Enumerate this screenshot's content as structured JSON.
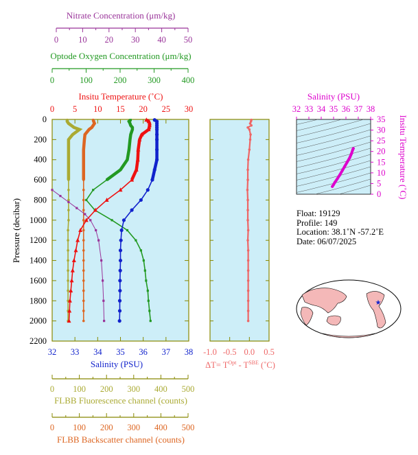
{
  "colors": {
    "nitrate": "#993399",
    "oxygen": "#229922",
    "temperature": "#ee1111",
    "salinity": "#1122cc",
    "fluorescence": "#aaaa33",
    "backscatter": "#dd6622",
    "delta": "#ee6666",
    "ts_accent": "#dd00cc",
    "plot_bg": "#cdeef8",
    "axis_olive": "#888800"
  },
  "axes": {
    "nitrate": {
      "title": "Nitrate Concentration (μm/kg)",
      "ticks": [
        "0",
        "10",
        "20",
        "30",
        "40",
        "50"
      ]
    },
    "oxygen": {
      "title": "Optode Oxygen Concentration (μm/kg)",
      "ticks": [
        "0",
        "100",
        "200",
        "300",
        "400"
      ]
    },
    "temperature": {
      "title": "Insitu Temperature (˚C)",
      "ticks": [
        "0",
        "5",
        "10",
        "15",
        "20",
        "25",
        "30"
      ]
    },
    "pressure": {
      "title": "Pressure (decibar)",
      "ticks": [
        "0",
        "200",
        "400",
        "600",
        "800",
        "1000",
        "1200",
        "1400",
        "1600",
        "1800",
        "2000",
        "2200"
      ]
    },
    "salinity": {
      "title": "Salinity (PSU)",
      "ticks": [
        "32",
        "33",
        "34",
        "35",
        "36",
        "37",
        "38"
      ]
    },
    "delta": {
      "title_main": "ΔT= T",
      "sup1": "Opt",
      "title_mid": " - T",
      "sup2": "SBE",
      "title_end": " (˚C)",
      "ticks": [
        "-1.0",
        "-0.5",
        "0.0",
        "0.5"
      ]
    },
    "fluorescence": {
      "title": "FLBB Fluorescence channel (counts)",
      "ticks": [
        "0",
        "100",
        "200",
        "300",
        "400",
        "500"
      ]
    },
    "backscatter": {
      "title": "FLBB Backscatter channel (counts)",
      "ticks": [
        "0",
        "100",
        "200",
        "300",
        "400",
        "500"
      ]
    },
    "ts_salinity": {
      "title": "Salinity (PSU)",
      "ticks": [
        "32",
        "33",
        "34",
        "35",
        "36",
        "37",
        "38"
      ]
    },
    "ts_temperature": {
      "title": "Insitu Temperature (˚C)",
      "ticks": [
        "0",
        "5",
        "10",
        "15",
        "20",
        "25",
        "30",
        "35"
      ]
    }
  },
  "info": {
    "float": "Float:  19129",
    "profile": "Profile:  149",
    "location": "Location:  38.1˚N  -57.2˚E",
    "date": "Date:  06/07/2025"
  },
  "chart_data": [
    {
      "type": "line",
      "name": "profile",
      "ylabel": "Pressure (decibar)",
      "ylim": [
        0,
        2200
      ],
      "temperature": {
        "xlim": [
          0,
          30
        ],
        "pressure": [
          5,
          20,
          40,
          60,
          80,
          100,
          150,
          200,
          300,
          400,
          500,
          600,
          700,
          800,
          900,
          1000,
          1100,
          1200,
          1300,
          1400,
          1500,
          1600,
          1700,
          1800,
          1900,
          2000
        ],
        "values": [
          20.7,
          21.2,
          21.4,
          21.4,
          21.3,
          21.2,
          19.7,
          19.2,
          18.9,
          18.8,
          18.5,
          17.5,
          15.0,
          12.0,
          9.5,
          7.5,
          6.2,
          5.6,
          5.2,
          4.8,
          4.5,
          4.3,
          4.1,
          3.9,
          3.8,
          3.7
        ]
      },
      "salinity": {
        "xlim": [
          32,
          38
        ],
        "pressure": [
          5,
          20,
          40,
          60,
          80,
          100,
          150,
          200,
          300,
          400,
          500,
          600,
          700,
          800,
          900,
          1000,
          1100,
          1200,
          1300,
          1400,
          1500,
          1600,
          1700,
          1800,
          1900,
          2000
        ],
        "values": [
          36.5,
          36.6,
          36.6,
          36.6,
          36.6,
          36.6,
          36.6,
          36.6,
          36.6,
          36.6,
          36.5,
          36.4,
          36.2,
          35.9,
          35.5,
          35.15,
          35.05,
          35.02,
          35.0,
          35.0,
          34.99,
          34.98,
          34.98,
          34.97,
          34.97,
          34.96
        ]
      },
      "oxygen": {
        "xlim": [
          0,
          400
        ],
        "pressure": [
          5,
          20,
          40,
          60,
          80,
          100,
          150,
          200,
          300,
          400,
          500,
          600,
          700,
          800,
          900,
          1000,
          1100,
          1200,
          1300,
          1400,
          1500,
          1600,
          1700,
          1800,
          1900,
          2000
        ],
        "values": [
          230,
          225,
          228,
          230,
          235,
          235,
          230,
          228,
          225,
          220,
          200,
          160,
          120,
          100,
          125,
          175,
          220,
          245,
          260,
          268,
          272,
          275,
          280,
          282,
          285,
          288
        ]
      },
      "nitrate": {
        "xlim": [
          0,
          50
        ],
        "pressure": [
          700,
          760,
          820,
          880,
          940,
          1000,
          1100,
          1200,
          1400,
          1600,
          1800,
          2000
        ],
        "values": [
          0,
          3,
          6,
          9,
          12,
          14,
          16,
          17,
          18,
          18.5,
          18.8,
          19
        ]
      },
      "fluorescence": {
        "xlim": [
          0,
          500
        ],
        "pressure": [
          5,
          20,
          40,
          60,
          80,
          100,
          150,
          200,
          300,
          400,
          500,
          600,
          700,
          800,
          900,
          1000,
          1100,
          1200,
          1300,
          1400,
          1500,
          1600,
          1700,
          1800,
          1900,
          2000
        ],
        "values": [
          55,
          55,
          60,
          70,
          80,
          100,
          75,
          60,
          60,
          60,
          60,
          60,
          60,
          60,
          60,
          60,
          58,
          58,
          58,
          58,
          58,
          58,
          58,
          58,
          58,
          58
        ]
      },
      "backscatter": {
        "xlim": [
          0,
          500
        ],
        "pressure": [
          5,
          20,
          40,
          60,
          80,
          100,
          150,
          200,
          300,
          400,
          500,
          600,
          700,
          800,
          900,
          1000,
          1100,
          1200,
          1300,
          1400,
          1500,
          1600,
          1700,
          1800,
          1900,
          2000
        ],
        "values": [
          150,
          152,
          155,
          150,
          145,
          135,
          120,
          118,
          115,
          115,
          115,
          115,
          115,
          115,
          115,
          115,
          115,
          115,
          115,
          115,
          115,
          115,
          115,
          115,
          115,
          115
        ]
      }
    },
    {
      "type": "line",
      "name": "delta",
      "xlim": [
        -1.0,
        0.5
      ],
      "ylim": [
        0,
        2200
      ],
      "pressure": [
        5,
        20,
        40,
        60,
        80,
        100,
        150,
        200,
        300,
        400,
        500,
        600,
        700,
        800,
        900,
        1000,
        1100,
        1200,
        1300,
        1400,
        1500,
        1600,
        1700,
        1800,
        1900,
        2000
      ],
      "values": [
        0.05,
        0.04,
        0.02,
        0.05,
        -0.04,
        0.0,
        0.03,
        0.02,
        0.0,
        -0.03,
        -0.04,
        -0.04,
        -0.05,
        -0.04,
        -0.04,
        -0.04,
        -0.03,
        -0.04,
        -0.03,
        -0.03,
        -0.03,
        -0.03,
        -0.03,
        -0.03,
        -0.03,
        -0.03
      ]
    },
    {
      "type": "scatter",
      "name": "ts",
      "xlim": [
        32,
        38
      ],
      "ylim": [
        0,
        35
      ],
      "salinity": [
        34.9,
        35.0,
        35.1,
        35.3,
        35.5,
        35.7,
        35.9,
        36.1,
        36.3,
        36.45,
        36.55,
        36.6
      ],
      "temperature": [
        3.6,
        4.5,
        5.5,
        7.2,
        9.0,
        11.0,
        13.0,
        15.0,
        17.0,
        19.0,
        20.8,
        21.4
      ]
    }
  ]
}
